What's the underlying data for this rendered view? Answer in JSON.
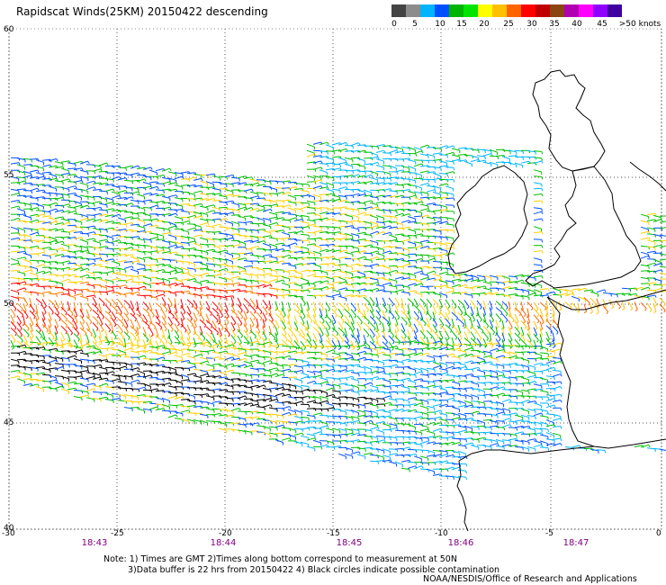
{
  "title": "Rapidscat Winds(25KM) 20150422 descending",
  "color_scale": {
    "labels": [
      "0",
      "5",
      "10",
      "15",
      "20",
      "25",
      "30",
      "35",
      "40",
      "45",
      ">50 knots"
    ],
    "colors": [
      "#444444",
      "#8c8c8c",
      "#00b4ff",
      "#0050ff",
      "#00b400",
      "#00e400",
      "#ffff00",
      "#ffc000",
      "#ff6400",
      "#ff0000",
      "#c00000",
      "#8b4513",
      "#b000b0",
      "#ff00ff",
      "#9000ff",
      "#4000a0"
    ]
  },
  "map": {
    "lat_labels": [
      "60",
      "55",
      "50",
      "45",
      "40"
    ],
    "lon_labels": [
      "-30",
      "-25",
      "-20",
      "-15",
      "-10",
      "-5",
      "0"
    ],
    "time_labels": [
      "18:43",
      "18:44",
      "18:45",
      "18:46",
      "18:47"
    ]
  },
  "notes": [
    "Note: 1) Times are GMT 2)Times along bottom correspond to measurement at 50N",
    "3)Data buffer is 22 hrs from 20150422 4) Black circles indicate possible contamination"
  ],
  "credit": "NOAA/NESDIS/Office of Research and Applications"
}
